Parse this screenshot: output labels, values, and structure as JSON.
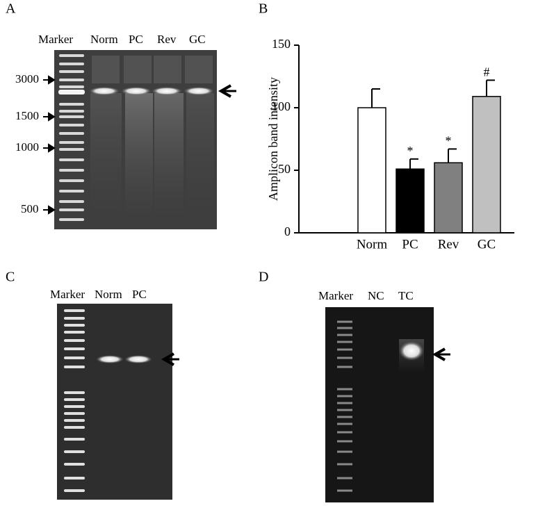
{
  "panels": {
    "a": {
      "label": "A",
      "lanes": [
        "Marker",
        "Norm",
        "PC",
        "Rev",
        "GC"
      ],
      "sizes": [
        "3000",
        "1500",
        "1000",
        "500"
      ]
    },
    "c": {
      "label": "C",
      "lanes": [
        "Marker",
        "Norm",
        "PC"
      ]
    },
    "d": {
      "label": "D",
      "lanes": [
        "Marker",
        "NC",
        "TC"
      ]
    }
  },
  "chart_data": {
    "type": "bar",
    "panel_label": "B",
    "ylabel": "Amplicon band intensity",
    "categories": [
      "Norm",
      "PC",
      "Rev",
      "GC"
    ],
    "values": [
      100,
      51,
      56,
      109
    ],
    "errors": [
      15,
      8,
      11,
      13
    ],
    "colors": [
      "#ffffff",
      "#000000",
      "#808080",
      "#c0c0c0"
    ],
    "annotations": [
      null,
      "*",
      "*",
      "#"
    ],
    "ylim": [
      0,
      150
    ],
    "yticks": [
      0,
      50,
      100,
      150
    ]
  }
}
